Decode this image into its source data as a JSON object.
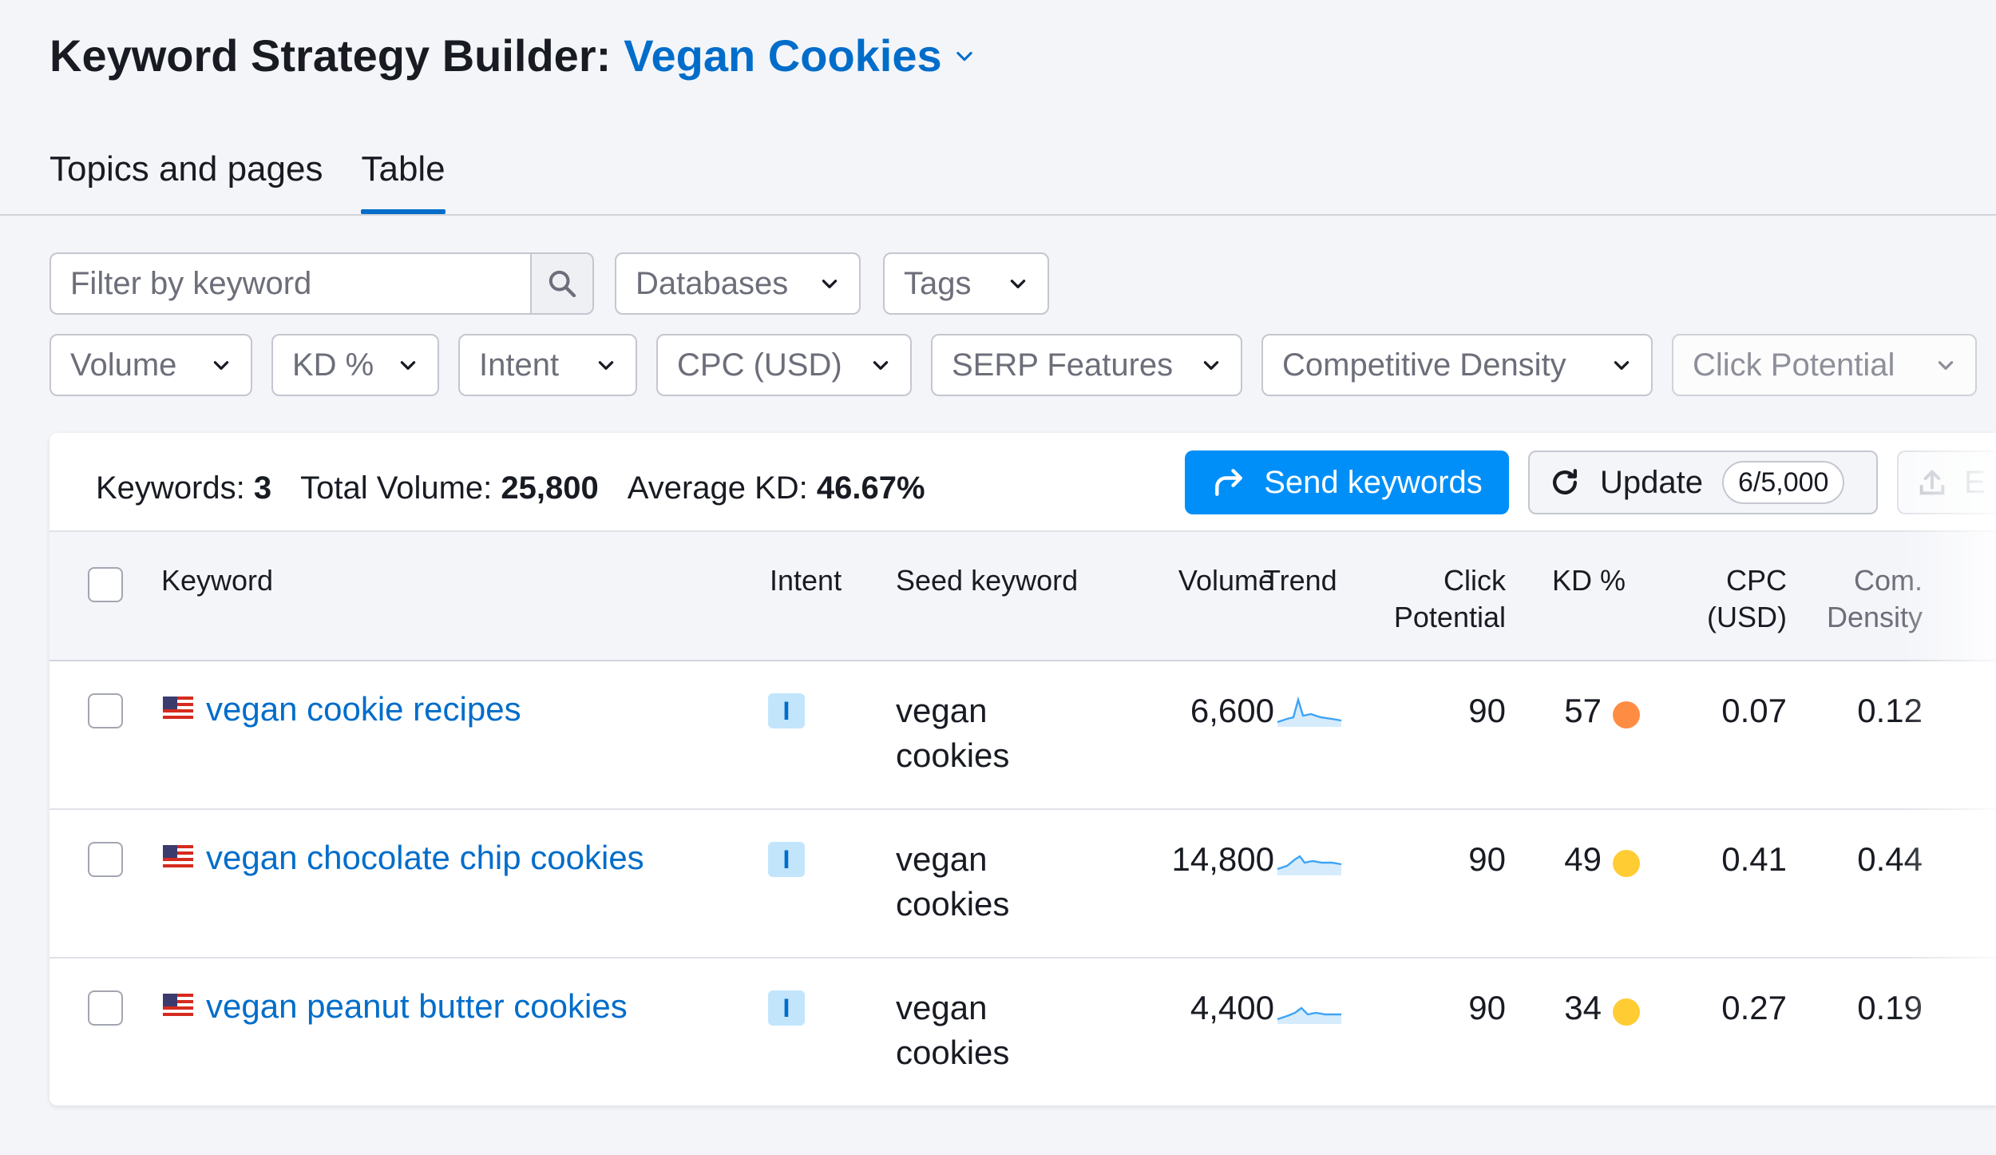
{
  "header": {
    "title_static": "Keyword Strategy Builder:",
    "project_name": "Vegan Cookies"
  },
  "tabs": [
    {
      "label": "Topics and pages",
      "active": false
    },
    {
      "label": "Table",
      "active": true
    }
  ],
  "filters": {
    "search_placeholder": "Filter by keyword",
    "databases": "Databases",
    "tags": "Tags",
    "volume": "Volume",
    "kd": "KD %",
    "intent": "Intent",
    "cpc": "CPC (USD)",
    "serp": "SERP Features",
    "competitive_density": "Competitive Density",
    "click_potential": "Click Potential"
  },
  "summary": {
    "keywords_label": "Keywords:",
    "keywords_value": "3",
    "volume_label": "Total Volume:",
    "volume_value": "25,800",
    "kd_label": "Average KD:",
    "kd_value": "46.67%"
  },
  "actions": {
    "send_label": "Send keywords",
    "update_label": "Update",
    "update_count": "6/5,000",
    "export_label": "E"
  },
  "columns": {
    "keyword": "Keyword",
    "intent": "Intent",
    "seed": "Seed keyword",
    "volume": "Volume",
    "trend": "Trend",
    "click_potential_1": "Click",
    "click_potential_2": "Potential",
    "kd": "KD %",
    "cpc_1": "CPC",
    "cpc_2": "(USD)",
    "com_density_1": "Com.",
    "com_density_2": "Density"
  },
  "rows": [
    {
      "keyword": "vegan cookie recipes",
      "intent": "I",
      "seed_1": "vegan",
      "seed_2": "cookies",
      "volume": "6,600",
      "click_potential": "90",
      "kd": "57",
      "cpc": "0.07",
      "com_density": "0.12"
    },
    {
      "keyword": "vegan chocolate chip cookies",
      "intent": "I",
      "seed_1": "vegan",
      "seed_2": "cookies",
      "volume": "14,800",
      "click_potential": "90",
      "kd": "49",
      "cpc": "0.41",
      "com_density": "0.44"
    },
    {
      "keyword": "vegan peanut butter cookies",
      "intent": "I",
      "seed_1": "vegan",
      "seed_2": "cookies",
      "volume": "4,400",
      "click_potential": "90",
      "kd": "34",
      "cpc": "0.27",
      "com_density": "0.19"
    }
  ],
  "colors": {
    "link": "#006dca",
    "primary_button": "#008ff8",
    "kd_hard": "#ff8c43",
    "kd_medium": "#ffcc33",
    "intent_badge_bg": "#c2e5fc"
  },
  "icons": {
    "title_chevron": "chevron-down-icon",
    "search": "search-icon",
    "send": "share-arrow-icon",
    "update": "refresh-icon",
    "export": "upload-icon",
    "flag": "us-flag-icon",
    "trend": "sparkline-icon"
  }
}
